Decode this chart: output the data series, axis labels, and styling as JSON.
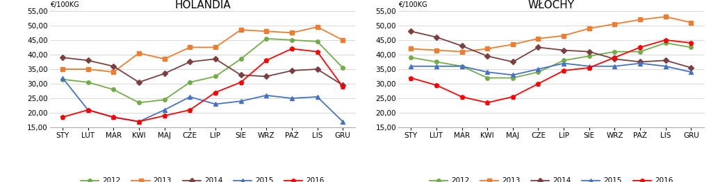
{
  "months": [
    "STY",
    "LUT",
    "MAR",
    "KWI",
    "MAJ",
    "CZE",
    "LIP",
    "SIE",
    "WRZ",
    "PAŻ",
    "LIS",
    "GRU"
  ],
  "holandia": {
    "2012": [
      31.5,
      30.5,
      28.0,
      23.5,
      24.5,
      30.5,
      32.5,
      38.5,
      45.5,
      45.0,
      44.5,
      35.5
    ],
    "2013": [
      35.0,
      35.0,
      34.0,
      40.5,
      38.5,
      42.5,
      42.5,
      48.5,
      48.0,
      47.5,
      49.5,
      45.0
    ],
    "2014": [
      39.0,
      38.0,
      36.0,
      30.5,
      33.5,
      37.5,
      38.5,
      33.0,
      32.5,
      34.5,
      35.0,
      29.5
    ],
    "2015": [
      32.0,
      21.0,
      18.5,
      17.0,
      21.0,
      25.5,
      23.0,
      24.0,
      26.0,
      25.0,
      25.5,
      17.0
    ],
    "2016": [
      18.5,
      21.0,
      18.5,
      17.0,
      19.0,
      21.0,
      27.0,
      30.5,
      38.0,
      42.0,
      41.0,
      29.0
    ]
  },
  "wlochy": {
    "2012": [
      39.0,
      37.5,
      36.0,
      32.0,
      32.0,
      34.0,
      38.0,
      39.5,
      41.0,
      41.0,
      44.0,
      42.5
    ],
    "2013": [
      42.0,
      41.5,
      41.0,
      42.0,
      43.5,
      45.5,
      46.5,
      49.0,
      50.5,
      52.0,
      53.0,
      51.0
    ],
    "2014": [
      48.0,
      46.0,
      43.0,
      39.5,
      37.5,
      42.5,
      41.5,
      41.0,
      38.5,
      37.5,
      38.0,
      35.5
    ],
    "2015": [
      36.0,
      36.0,
      36.0,
      34.0,
      33.0,
      35.0,
      37.0,
      36.0,
      36.0,
      37.0,
      36.0,
      34.0
    ],
    "2016": [
      32.0,
      29.5,
      25.5,
      23.5,
      25.5,
      30.0,
      34.5,
      35.5,
      39.0,
      42.5,
      45.0,
      44.0
    ]
  },
  "colors": {
    "2012": "#70ad47",
    "2013": "#ed7d31",
    "2014": "#7b3f3f",
    "2015": "#4472c4",
    "2016": "#ff0000"
  },
  "marker_styles": {
    "2012": "o",
    "2013": "s",
    "2014": "D",
    "2015": "^",
    "2016": "p"
  },
  "marker_sizes": {
    "2012": 4,
    "2013": 4,
    "2014": 4,
    "2015": 4,
    "2016": 5
  },
  "line_widths": {
    "2012": 1.3,
    "2013": 1.3,
    "2014": 1.3,
    "2015": 1.3,
    "2016": 1.3
  },
  "ylim": [
    15.0,
    55.0
  ],
  "yticks": [
    15.0,
    20.0,
    25.0,
    30.0,
    35.0,
    40.0,
    45.0,
    50.0,
    55.0
  ],
  "ylabel": "€/100KG",
  "title_holandia": "HOLANDIA",
  "title_wlochy": "WŁOCHY",
  "bg_color": "#ffffff",
  "grid_color": "#c8c8c8",
  "tick_fontsize": 7.5,
  "title_fontsize": 11,
  "legend_fontsize": 7.5
}
